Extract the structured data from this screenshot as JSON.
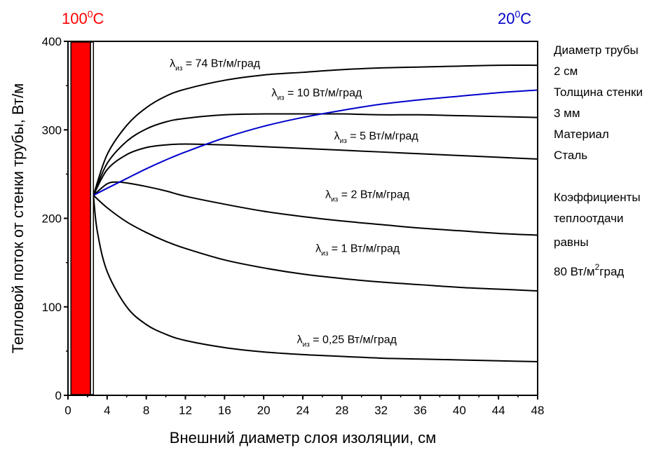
{
  "chart_data": {
    "type": "line",
    "xlabel": "Внешний диаметр слоя изоляции, см",
    "ylabel": "Тепловой поток от стенки трубы, Вт/м",
    "xlim": [
      0,
      48
    ],
    "ylim": [
      0,
      400
    ],
    "xticks": [
      "0",
      "4",
      "8",
      "12",
      "16",
      "20",
      "24",
      "28",
      "32",
      "36",
      "40",
      "44",
      "48"
    ],
    "yticks": [
      "0",
      "100",
      "200",
      "300",
      "400"
    ],
    "grid": false,
    "wall_band": {
      "steel_from": 0.3,
      "steel_to": 2.3,
      "tube_outer": 2.6
    },
    "hot_label": {
      "value": "100",
      "sup": "0",
      "unit": "C",
      "color": "#ff0000"
    },
    "cold_label": {
      "value": "20",
      "sup": "0",
      "unit": "C",
      "color": "#0000cc"
    },
    "series": [
      {
        "name": "λиз = 74 Вт/м/град",
        "lambda_symbol": "λ",
        "lambda_sub": "из",
        "label_text": " = 74 Вт/м/град",
        "color": "#000000",
        "x": [
          2.6,
          4,
          6,
          8,
          10,
          12,
          16,
          20,
          24,
          28,
          32,
          36,
          40,
          44,
          48
        ],
        "y": [
          226,
          272,
          305,
          325,
          338,
          346,
          356,
          362,
          365,
          368,
          370,
          371,
          372,
          373,
          373
        ]
      },
      {
        "name": "λиз = 10 Вт/м/град",
        "lambda_symbol": "λ",
        "lambda_sub": "из",
        "label_text": " = 10 Вт/м/град",
        "color": "#000000",
        "x": [
          2.6,
          4,
          6,
          8,
          10,
          12,
          16,
          20,
          24,
          28,
          32,
          36,
          40,
          44,
          48
        ],
        "y": [
          226,
          262,
          287,
          301,
          309,
          313,
          317,
          318,
          318,
          318,
          317,
          317,
          316,
          315,
          314
        ]
      },
      {
        "name": "λиз = 5 Вт/м/град",
        "lambda_symbol": "λ",
        "lambda_sub": "из",
        "label_text": " = 5 Вт/м/град",
        "color": "#000000",
        "x": [
          2.6,
          4,
          6,
          8,
          10,
          12,
          16,
          20,
          24,
          28,
          32,
          36,
          40,
          44,
          48
        ],
        "y": [
          226,
          255,
          272,
          280,
          283,
          284,
          283,
          281,
          279,
          277,
          275,
          273,
          271,
          269,
          267
        ]
      },
      {
        "name": "λиз = 2 Вт/м/град",
        "lambda_symbol": "λ",
        "lambda_sub": "из",
        "label_text": " = 2 Вт/м/град",
        "color": "#000000",
        "x": [
          2.6,
          4,
          5,
          6,
          8,
          10,
          12,
          16,
          20,
          24,
          28,
          32,
          36,
          40,
          44,
          48
        ],
        "y": [
          226,
          239,
          241,
          240,
          236,
          231,
          225,
          216,
          208,
          202,
          197,
          193,
          189,
          186,
          183,
          181
        ]
      },
      {
        "name": "λиз = 1 Вт/м/град",
        "lambda_symbol": "λ",
        "lambda_sub": "из",
        "label_text": " = 1 Вт/м/град",
        "color": "#000000",
        "x": [
          2.6,
          4,
          6,
          8,
          10,
          12,
          16,
          20,
          24,
          28,
          32,
          36,
          40,
          44,
          48
        ],
        "y": [
          226,
          212,
          196,
          184,
          174,
          166,
          153,
          144,
          137,
          132,
          128,
          125,
          122,
          120,
          118
        ]
      },
      {
        "name": "λиз = 0,25 Вт/м/град",
        "lambda_symbol": "λ",
        "lambda_sub": "из",
        "label_text": " = 0,25 Вт/м/град",
        "color": "#000000",
        "x": [
          2.6,
          3,
          4,
          6,
          8,
          10,
          12,
          16,
          20,
          24,
          28,
          32,
          36,
          40,
          44,
          48
        ],
        "y": [
          226,
          185,
          140,
          100,
          80,
          69,
          62,
          54,
          49,
          46,
          44,
          42,
          41,
          40,
          39,
          38
        ]
      },
      {
        "name": "",
        "color": "#0000cc",
        "x": [
          2.6,
          4,
          6,
          8,
          10,
          12,
          16,
          20,
          24,
          28,
          32,
          36,
          40,
          44,
          48
        ],
        "y": [
          226,
          234,
          245,
          256,
          266,
          275,
          291,
          304,
          314,
          322,
          329,
          334,
          338,
          342,
          345
        ]
      }
    ]
  },
  "info": {
    "line1": "Диаметр трубы",
    "line2": "2 см",
    "line3": "Толщина стенки",
    "line4": "3 мм",
    "line5": "Материал",
    "line6": "Сталь",
    "line7": "Коэффициенты",
    "line8": "теплоотдачи",
    "line9": "равны",
    "line10_main": "80 Вт/м",
    "line10_sup": "2",
    "line10_tail": "град"
  }
}
